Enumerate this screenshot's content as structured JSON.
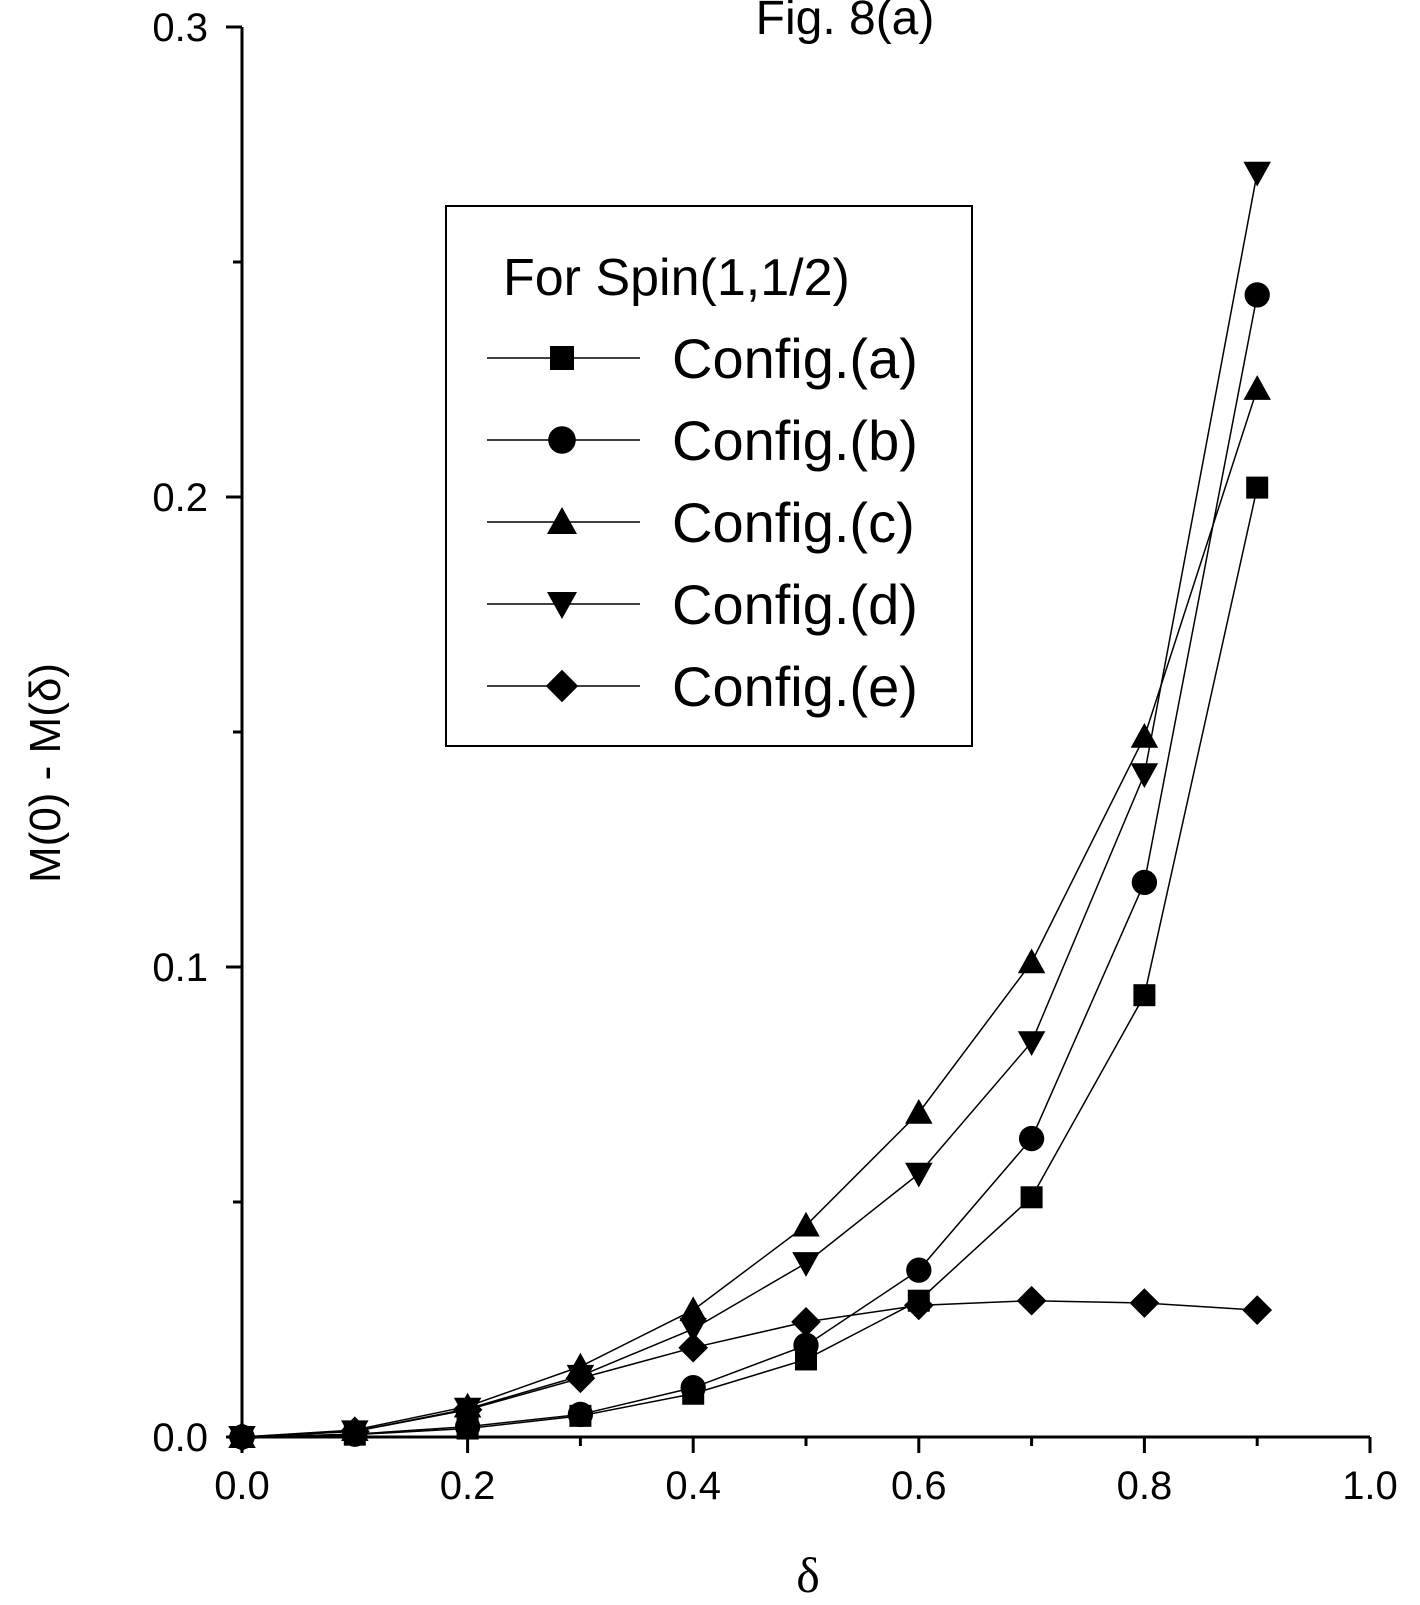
{
  "chart_data": {
    "type": "line",
    "title": "Fig. 8(a)",
    "xlabel": "δ",
    "ylabel": "M(0) - M(δ)",
    "xlim": [
      0.0,
      1.0
    ],
    "ylim": [
      0.0,
      0.3
    ],
    "xticks": [
      "0.0",
      "0.2",
      "0.4",
      "0.6",
      "0.8",
      "1.0"
    ],
    "yticks": [
      "0.0",
      "0.1",
      "0.2",
      "0.3"
    ],
    "grid": false,
    "legend_title": "For Spin(1,1/2)",
    "legend_position": "upper-center",
    "x": [
      0.0,
      0.1,
      0.2,
      0.3,
      0.4,
      0.5,
      0.6,
      0.7,
      0.8,
      0.9
    ],
    "series": [
      {
        "name": "Config.(a)",
        "marker": "square",
        "values": [
          0.0,
          0.0005,
          0.0018,
          0.0045,
          0.0092,
          0.0165,
          0.029,
          0.051,
          0.094,
          0.202
        ]
      },
      {
        "name": "Config.(b)",
        "marker": "circle",
        "values": [
          0.0,
          0.0006,
          0.0022,
          0.0048,
          0.0105,
          0.0195,
          0.0355,
          0.0635,
          0.118,
          0.243
        ]
      },
      {
        "name": "Config.(c)",
        "marker": "triangle-up",
        "values": [
          0.0,
          0.0015,
          0.0065,
          0.015,
          0.027,
          0.045,
          0.069,
          0.101,
          0.149,
          0.223
        ]
      },
      {
        "name": "Config.(d)",
        "marker": "triangle-down",
        "values": [
          0.0,
          0.0012,
          0.006,
          0.013,
          0.023,
          0.037,
          0.056,
          0.084,
          0.141,
          0.269
        ]
      },
      {
        "name": "Config.(e)",
        "marker": "diamond",
        "values": [
          0.0,
          0.0012,
          0.0058,
          0.0125,
          0.019,
          0.0245,
          0.028,
          0.029,
          0.0285,
          0.027
        ]
      }
    ]
  }
}
